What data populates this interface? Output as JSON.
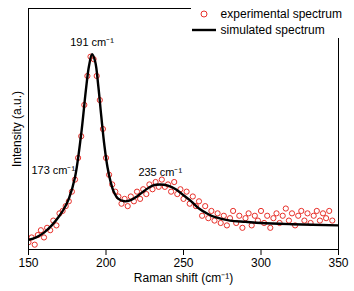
{
  "chart_data": {
    "type": "line",
    "xlabel": "Raman shift (cm⁻¹)",
    "ylabel": "Intensity (a.u.)",
    "xlim": [
      150,
      350
    ],
    "xticks": [
      150,
      200,
      250,
      300,
      350
    ],
    "ylim": [
      0,
      100
    ],
    "yticks": [],
    "tick_labels": "x",
    "grid": false,
    "legend": "top-right",
    "series": [
      {
        "name": "experimental spectrum",
        "type": "scatter",
        "marker": "open circle",
        "color": "#e8302a",
        "x": [
          150,
          152,
          154,
          156,
          158,
          160,
          162,
          164,
          166,
          168,
          170,
          172,
          174,
          176,
          178,
          180,
          182,
          184,
          186,
          188,
          190,
          192,
          194,
          196,
          198,
          200,
          202,
          204,
          206,
          208,
          210,
          212,
          214,
          216,
          218,
          220,
          222,
          224,
          226,
          228,
          230,
          232,
          234,
          236,
          238,
          240,
          242,
          244,
          246,
          248,
          250,
          252,
          254,
          256,
          258,
          260,
          262,
          264,
          266,
          268,
          270,
          272,
          274,
          276,
          278,
          280,
          282,
          284,
          286,
          288,
          290,
          292,
          294,
          296,
          298,
          300,
          302,
          304,
          306,
          308,
          310,
          312,
          314,
          316,
          318,
          320,
          322,
          324,
          326,
          328,
          330,
          332,
          334,
          336,
          338,
          340,
          342,
          344,
          346
        ],
        "values": [
          3,
          5,
          2,
          6,
          8,
          5,
          9,
          8,
          12,
          10,
          15,
          16,
          18,
          20,
          24,
          29,
          38,
          47,
          60,
          72,
          80,
          79,
          72,
          62,
          50,
          38,
          31,
          27,
          24,
          22,
          19,
          21,
          18,
          22,
          20,
          24,
          21,
          25,
          23,
          27,
          25,
          28,
          26,
          29,
          26,
          27,
          24,
          28,
          23,
          25,
          21,
          24,
          19,
          22,
          18,
          20,
          14,
          18,
          13,
          16,
          12,
          15,
          11,
          14,
          10,
          13,
          16,
          11,
          14,
          9,
          13,
          15,
          10,
          14,
          12,
          16,
          11,
          14,
          9,
          13,
          15,
          11,
          14,
          17,
          12,
          15,
          10,
          14,
          16,
          12,
          15,
          11,
          14,
          16,
          12,
          15,
          13,
          16,
          12
        ]
      },
      {
        "name": "simulated spectrum",
        "type": "line",
        "line_style": "solid",
        "color": "#000000",
        "x": [
          150,
          155,
          160,
          165,
          170,
          173,
          176,
          180,
          184,
          187,
          189,
          191,
          193,
          195,
          197,
          199,
          201,
          203,
          205,
          208,
          212,
          216,
          220,
          225,
          230,
          235,
          240,
          245,
          250,
          255,
          260,
          265,
          270,
          280,
          290,
          300,
          320,
          350
        ],
        "values": [
          4,
          5,
          7,
          10,
          14,
          17,
          21,
          30,
          48,
          66,
          76,
          81,
          78,
          68,
          55,
          43,
          34,
          28,
          24,
          21,
          20,
          20.5,
          22,
          24.5,
          26.5,
          27,
          26.5,
          25,
          22.5,
          20,
          17,
          15,
          13.5,
          12,
          11.5,
          11,
          10.5,
          10
        ]
      }
    ],
    "annotations": [
      {
        "text": "191 cm⁻¹",
        "x": 191,
        "y": 86
      },
      {
        "text": "173 cm⁻¹",
        "x": 166,
        "y": 33
      },
      {
        "text": "235 cm⁻¹",
        "x": 235,
        "y": 32
      }
    ]
  }
}
